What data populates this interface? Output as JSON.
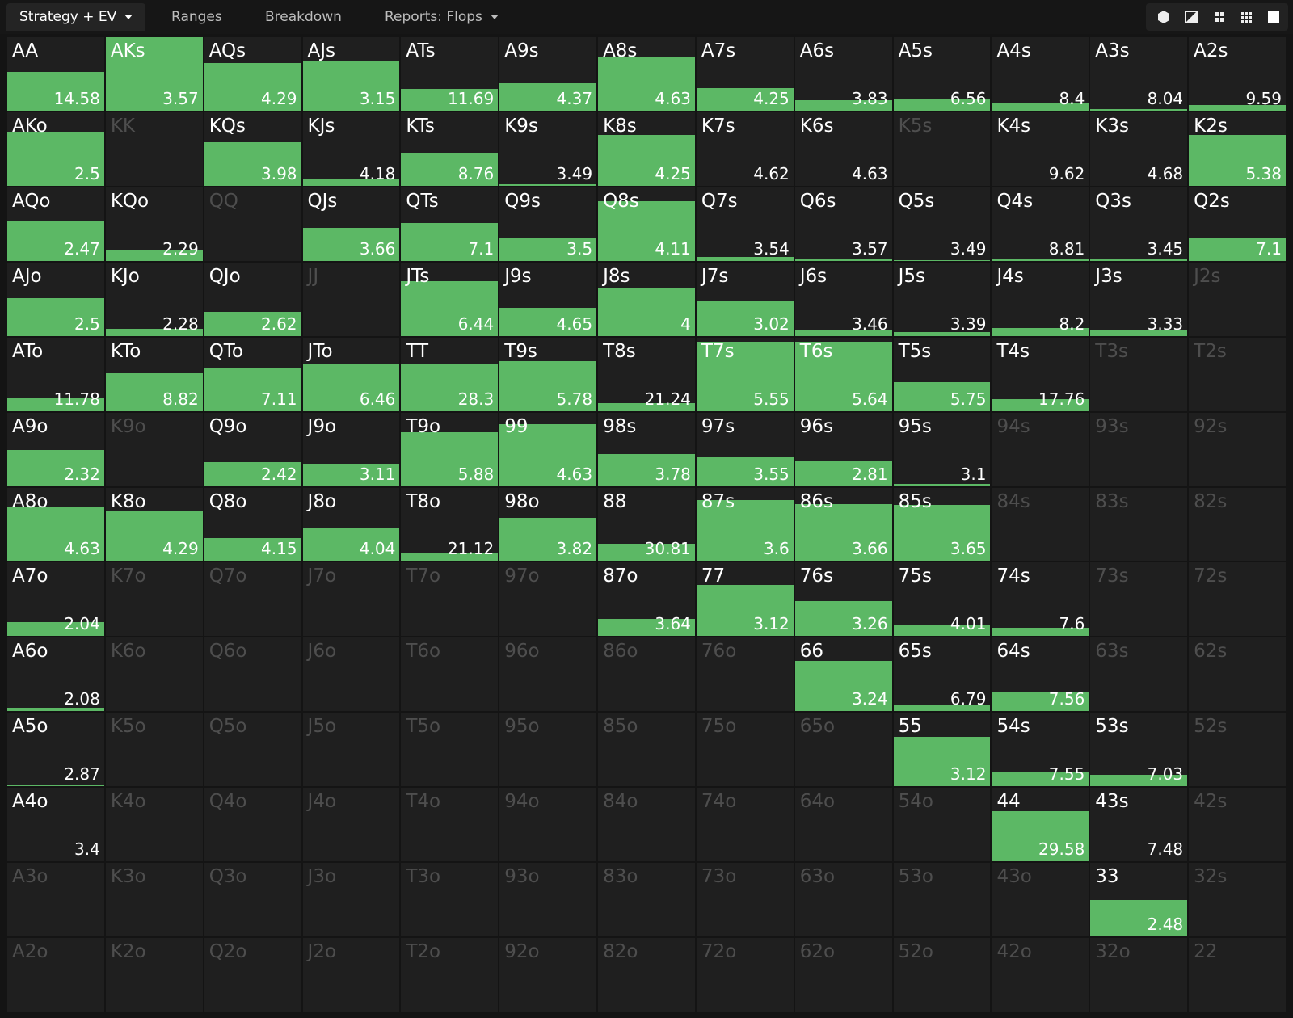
{
  "tabs": [
    "Strategy + EV",
    "Ranges",
    "Breakdown",
    "Reports: Flops"
  ],
  "grid": {
    "rows": [
      [
        {
          "hand": "AA",
          "ev": 14.58,
          "freq": 0.53
        },
        {
          "hand": "AKs",
          "ev": 3.57,
          "freq": 1.0
        },
        {
          "hand": "AQs",
          "ev": 4.29,
          "freq": 0.65
        },
        {
          "hand": "AJs",
          "ev": 3.15,
          "freq": 0.68
        },
        {
          "hand": "ATs",
          "ev": 11.69,
          "freq": 0.3
        },
        {
          "hand": "A9s",
          "ev": 4.37,
          "freq": 0.37
        },
        {
          "hand": "A8s",
          "ev": 4.63,
          "freq": 0.73
        },
        {
          "hand": "A7s",
          "ev": 4.25,
          "freq": 0.31
        },
        {
          "hand": "A6s",
          "ev": 3.83,
          "freq": 0.14
        },
        {
          "hand": "A5s",
          "ev": 6.56,
          "freq": 0.15
        },
        {
          "hand": "A4s",
          "ev": 8.4,
          "freq": 0.1
        },
        {
          "hand": "A3s",
          "ev": 8.04,
          "freq": 0.02
        },
        {
          "hand": "A2s",
          "ev": 9.59,
          "freq": 0.08
        }
      ],
      [
        {
          "hand": "AKo",
          "ev": 2.5,
          "freq": 0.73
        },
        {
          "hand": "KK"
        },
        {
          "hand": "KQs",
          "ev": 3.98,
          "freq": 0.59
        },
        {
          "hand": "KJs",
          "ev": 4.18,
          "freq": 0.09
        },
        {
          "hand": "KTs",
          "ev": 8.76,
          "freq": 0.45
        },
        {
          "hand": "K9s",
          "ev": 3.49,
          "freq": 0.02
        },
        {
          "hand": "K8s",
          "ev": 4.25,
          "freq": 0.69
        },
        {
          "hand": "K7s",
          "ev": 4.62,
          "freq": 0
        },
        {
          "hand": "K6s",
          "ev": 4.63,
          "freq": 0
        },
        {
          "hand": "K5s"
        },
        {
          "hand": "K4s",
          "ev": 9.62,
          "freq": 0
        },
        {
          "hand": "K3s",
          "ev": 4.68,
          "freq": 0
        },
        {
          "hand": "K2s",
          "ev": 5.38,
          "freq": 0.69
        }
      ],
      [
        {
          "hand": "AQo",
          "ev": 2.47,
          "freq": 0.55
        },
        {
          "hand": "KQo",
          "ev": 2.29,
          "freq": 0.14
        },
        {
          "hand": "QQ"
        },
        {
          "hand": "QJs",
          "ev": 3.66,
          "freq": 0.45
        },
        {
          "hand": "QTs",
          "ev": 7.1,
          "freq": 0.52
        },
        {
          "hand": "Q9s",
          "ev": 3.5,
          "freq": 0.31
        },
        {
          "hand": "Q8s",
          "ev": 4.11,
          "freq": 0.81
        },
        {
          "hand": "Q7s",
          "ev": 3.54,
          "freq": 0.05
        },
        {
          "hand": "Q6s",
          "ev": 3.57,
          "freq": 0.02
        },
        {
          "hand": "Q5s",
          "ev": 3.49,
          "freq": 0.01
        },
        {
          "hand": "Q4s",
          "ev": 8.81,
          "freq": 0.02
        },
        {
          "hand": "Q3s",
          "ev": 3.45,
          "freq": 0.03
        },
        {
          "hand": "Q2s",
          "ev": 7.1,
          "freq": 0.31
        }
      ],
      [
        {
          "hand": "AJo",
          "ev": 2.5,
          "freq": 0.51
        },
        {
          "hand": "KJo",
          "ev": 2.28,
          "freq": 0.1
        },
        {
          "hand": "QJo",
          "ev": 2.62,
          "freq": 0.33
        },
        {
          "hand": "JJ"
        },
        {
          "hand": "JTs",
          "ev": 6.44,
          "freq": 0.74
        },
        {
          "hand": "J9s",
          "ev": 4.65,
          "freq": 0.38
        },
        {
          "hand": "J8s",
          "ev": 4,
          "freq": 0.66
        },
        {
          "hand": "J7s",
          "ev": 3.02,
          "freq": 0.47
        },
        {
          "hand": "J6s",
          "ev": 3.46,
          "freq": 0.08
        },
        {
          "hand": "J5s",
          "ev": 3.39,
          "freq": 0.05
        },
        {
          "hand": "J4s",
          "ev": 8.2,
          "freq": 0.11
        },
        {
          "hand": "J3s",
          "ev": 3.33,
          "freq": 0.09
        },
        {
          "hand": "J2s"
        }
      ],
      [
        {
          "hand": "ATo",
          "ev": 11.78,
          "freq": 0.17
        },
        {
          "hand": "KTo",
          "ev": 8.82,
          "freq": 0.51
        },
        {
          "hand": "QTo",
          "ev": 7.11,
          "freq": 0.59
        },
        {
          "hand": "JTo",
          "ev": 6.46,
          "freq": 0.64
        },
        {
          "hand": "TT",
          "ev": 28.3,
          "freq": 0.64
        },
        {
          "hand": "T9s",
          "ev": 5.78,
          "freq": 0.68
        },
        {
          "hand": "T8s",
          "ev": 21.24,
          "freq": 0.11
        },
        {
          "hand": "T7s",
          "ev": 5.55,
          "freq": 0.94
        },
        {
          "hand": "T6s",
          "ev": 5.64,
          "freq": 0.94
        },
        {
          "hand": "T5s",
          "ev": 5.75,
          "freq": 0.39
        },
        {
          "hand": "T4s",
          "ev": 17.76,
          "freq": 0.16
        },
        {
          "hand": "T3s"
        },
        {
          "hand": "T2s"
        }
      ],
      [
        {
          "hand": "A9o",
          "ev": 2.32,
          "freq": 0.49
        },
        {
          "hand": "K9o"
        },
        {
          "hand": "Q9o",
          "ev": 2.42,
          "freq": 0.33
        },
        {
          "hand": "J9o",
          "ev": 3.11,
          "freq": 0.3
        },
        {
          "hand": "T9o",
          "ev": 5.88,
          "freq": 0.73
        },
        {
          "hand": "99",
          "ev": 4.63,
          "freq": 0.84
        },
        {
          "hand": "98s",
          "ev": 3.78,
          "freq": 0.44
        },
        {
          "hand": "97s",
          "ev": 3.55,
          "freq": 0.39
        },
        {
          "hand": "96s",
          "ev": 2.81,
          "freq": 0.34
        },
        {
          "hand": "95s",
          "ev": 3.1,
          "freq": 0.03
        },
        {
          "hand": "94s"
        },
        {
          "hand": "93s"
        },
        {
          "hand": "92s"
        }
      ],
      [
        {
          "hand": "A8o",
          "ev": 4.63,
          "freq": 0.73
        },
        {
          "hand": "K8o",
          "ev": 4.29,
          "freq": 0.69
        },
        {
          "hand": "Q8o",
          "ev": 4.15,
          "freq": 0.31
        },
        {
          "hand": "J8o",
          "ev": 4.04,
          "freq": 0.44
        },
        {
          "hand": "T8o",
          "ev": 21.12,
          "freq": 0.1
        },
        {
          "hand": "98o",
          "ev": 3.82,
          "freq": 0.59
        },
        {
          "hand": "88",
          "ev": 30.81,
          "freq": 0.24
        },
        {
          "hand": "87s",
          "ev": 3.6,
          "freq": 0.83
        },
        {
          "hand": "86s",
          "ev": 3.66,
          "freq": 0.78
        },
        {
          "hand": "85s",
          "ev": 3.65,
          "freq": 0.76
        },
        {
          "hand": "84s"
        },
        {
          "hand": "83s"
        },
        {
          "hand": "82s"
        }
      ],
      [
        {
          "hand": "A7o",
          "ev": 2.04,
          "freq": 0.19
        },
        {
          "hand": "K7o"
        },
        {
          "hand": "Q7o"
        },
        {
          "hand": "J7o"
        },
        {
          "hand": "T7o"
        },
        {
          "hand": "97o"
        },
        {
          "hand": "87o",
          "ev": 3.64,
          "freq": 0.23
        },
        {
          "hand": "77",
          "ev": 3.12,
          "freq": 0.7
        },
        {
          "hand": "76s",
          "ev": 3.26,
          "freq": 0.48
        },
        {
          "hand": "75s",
          "ev": 4.01,
          "freq": 0.16
        },
        {
          "hand": "74s",
          "ev": 7.6,
          "freq": 0.11
        },
        {
          "hand": "73s"
        },
        {
          "hand": "72s"
        }
      ],
      [
        {
          "hand": "A6o",
          "ev": 2.08,
          "freq": 0.05
        },
        {
          "hand": "K6o"
        },
        {
          "hand": "Q6o"
        },
        {
          "hand": "J6o"
        },
        {
          "hand": "T6o"
        },
        {
          "hand": "96o"
        },
        {
          "hand": "86o"
        },
        {
          "hand": "76o"
        },
        {
          "hand": "66",
          "ev": 3.24,
          "freq": 0.68
        },
        {
          "hand": "65s",
          "ev": 6.79,
          "freq": 0.08
        },
        {
          "hand": "64s",
          "ev": 7.56,
          "freq": 0.26
        },
        {
          "hand": "63s"
        },
        {
          "hand": "62s"
        }
      ],
      [
        {
          "hand": "A5o",
          "ev": 2.87,
          "freq": 0.01
        },
        {
          "hand": "K5o"
        },
        {
          "hand": "Q5o"
        },
        {
          "hand": "J5o"
        },
        {
          "hand": "T5o"
        },
        {
          "hand": "95o"
        },
        {
          "hand": "85o"
        },
        {
          "hand": "75o"
        },
        {
          "hand": "65o"
        },
        {
          "hand": "55",
          "ev": 3.12,
          "freq": 0.67
        },
        {
          "hand": "54s",
          "ev": 7.55,
          "freq": 0.19
        },
        {
          "hand": "53s",
          "ev": 7.03,
          "freq": 0.16
        },
        {
          "hand": "52s"
        }
      ],
      [
        {
          "hand": "A4o",
          "ev": 3.4,
          "freq": 0
        },
        {
          "hand": "K4o"
        },
        {
          "hand": "Q4o"
        },
        {
          "hand": "J4o"
        },
        {
          "hand": "T4o"
        },
        {
          "hand": "94o"
        },
        {
          "hand": "84o"
        },
        {
          "hand": "74o"
        },
        {
          "hand": "64o"
        },
        {
          "hand": "54o"
        },
        {
          "hand": "44",
          "ev": 29.58,
          "freq": 0.68
        },
        {
          "hand": "43s",
          "ev": 7.48,
          "freq": 0
        },
        {
          "hand": "42s"
        }
      ],
      [
        {
          "hand": "A3o"
        },
        {
          "hand": "K3o"
        },
        {
          "hand": "Q3o"
        },
        {
          "hand": "J3o"
        },
        {
          "hand": "T3o"
        },
        {
          "hand": "93o"
        },
        {
          "hand": "83o"
        },
        {
          "hand": "73o"
        },
        {
          "hand": "63o"
        },
        {
          "hand": "53o"
        },
        {
          "hand": "43o"
        },
        {
          "hand": "33",
          "ev": 2.48,
          "freq": 0.5
        },
        {
          "hand": "32s"
        }
      ],
      [
        {
          "hand": "A2o"
        },
        {
          "hand": "K2o"
        },
        {
          "hand": "Q2o"
        },
        {
          "hand": "J2o"
        },
        {
          "hand": "T2o"
        },
        {
          "hand": "92o"
        },
        {
          "hand": "82o"
        },
        {
          "hand": "72o"
        },
        {
          "hand": "62o"
        },
        {
          "hand": "52o"
        },
        {
          "hand": "42o"
        },
        {
          "hand": "32o"
        },
        {
          "hand": "22"
        }
      ]
    ]
  }
}
